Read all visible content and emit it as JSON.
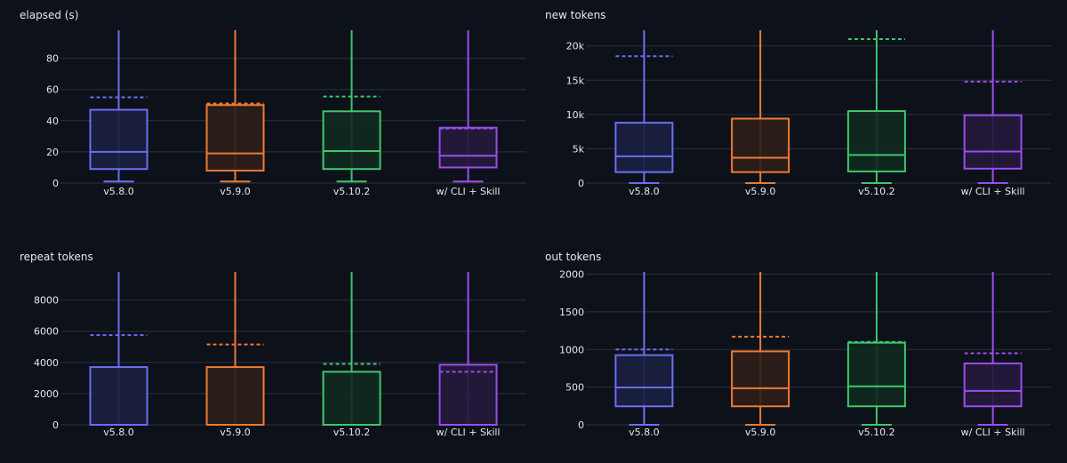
{
  "chart_data": [
    {
      "type": "box",
      "title": "elapsed (s)",
      "categories": [
        "v5.8.0",
        "v5.9.0",
        "v5.10.2",
        "w/ CLI + Skill"
      ],
      "ylim": [
        0,
        98
      ],
      "yticks": [
        0,
        20,
        40,
        60,
        80
      ],
      "ytick_labels": [
        "0",
        "20",
        "40",
        "60",
        "80"
      ],
      "grid": true,
      "series": [
        {
          "min": 1,
          "q1": 9,
          "median": 20,
          "q3": 47,
          "max": 98,
          "mean": 55
        },
        {
          "min": 1,
          "q1": 8,
          "median": 19,
          "q3": 50,
          "max": 98,
          "mean": 51
        },
        {
          "min": 1,
          "q1": 9,
          "median": 20.5,
          "q3": 46,
          "max": 98,
          "mean": 55.5
        },
        {
          "min": 1,
          "q1": 10,
          "median": 17.5,
          "q3": 35.5,
          "max": 98,
          "mean": 35
        }
      ]
    },
    {
      "type": "box",
      "title": "new tokens",
      "categories": [
        "v5.8.0",
        "v5.9.0",
        "v5.10.2",
        "w/ CLI + Skill"
      ],
      "ylim": [
        0,
        22300
      ],
      "yticks": [
        0,
        5000,
        10000,
        15000,
        20000
      ],
      "ytick_labels": [
        "0",
        "5k",
        "10k",
        "15k",
        "20k"
      ],
      "grid": true,
      "series": [
        {
          "min": 0,
          "q1": 1600,
          "median": 3900,
          "q3": 8800,
          "max": 22300,
          "mean": 18500
        },
        {
          "min": 0,
          "q1": 1600,
          "median": 3700,
          "q3": 9400,
          "max": 22300,
          "mean": null
        },
        {
          "min": 0,
          "q1": 1700,
          "median": 4100,
          "q3": 10500,
          "max": 22300,
          "mean": 21000
        },
        {
          "min": 0,
          "q1": 2100,
          "median": 4600,
          "q3": 9900,
          "max": 22300,
          "mean": 14800
        }
      ]
    },
    {
      "type": "box",
      "title": "repeat tokens",
      "categories": [
        "v5.8.0",
        "v5.9.0",
        "v5.10.2",
        "w/ CLI + Skill"
      ],
      "ylim": [
        0,
        9800
      ],
      "yticks": [
        0,
        2000,
        4000,
        6000,
        8000
      ],
      "ytick_labels": [
        "0",
        "2000",
        "4000",
        "6000",
        "8000"
      ],
      "grid": true,
      "series": [
        {
          "min": 0,
          "q1": 0,
          "median": 0,
          "q3": 3700,
          "max": 9800,
          "mean": 5750
        },
        {
          "min": 0,
          "q1": 0,
          "median": 0,
          "q3": 3700,
          "max": 9800,
          "mean": 5150
        },
        {
          "min": 0,
          "q1": 0,
          "median": 0,
          "q3": 3400,
          "max": 9800,
          "mean": 3900
        },
        {
          "min": 0,
          "q1": 0,
          "median": 0,
          "q3": 3850,
          "max": 9800,
          "mean": 3400
        }
      ]
    },
    {
      "type": "box",
      "title": "out tokens",
      "categories": [
        "v5.8.0",
        "v5.9.0",
        "v5.10.2",
        "w/ CLI + Skill"
      ],
      "ylim": [
        0,
        2030
      ],
      "yticks": [
        0,
        500,
        1000,
        1500,
        2000
      ],
      "ytick_labels": [
        "0",
        "500",
        "1000",
        "1500",
        "2000"
      ],
      "grid": true,
      "series": [
        {
          "min": 0,
          "q1": 245,
          "median": 495,
          "q3": 925,
          "max": 2030,
          "mean": 1000
        },
        {
          "min": 0,
          "q1": 245,
          "median": 485,
          "q3": 975,
          "max": 2030,
          "mean": 1170
        },
        {
          "min": 0,
          "q1": 245,
          "median": 510,
          "q3": 1090,
          "max": 2030,
          "mean": 1100
        },
        {
          "min": 0,
          "q1": 245,
          "median": 450,
          "q3": 815,
          "max": 2030,
          "mean": 950
        }
      ]
    }
  ],
  "colors": {
    "background": "#0d111a",
    "series": [
      "#6b6ff0",
      "#ee7a30",
      "#3fc76a",
      "#9b4df0"
    ],
    "fills": [
      "#1a2040",
      "#2c1e1a",
      "#0f2a20",
      "#251a3c"
    ],
    "grid": "#2b3140",
    "text": "#e6e8ee"
  }
}
